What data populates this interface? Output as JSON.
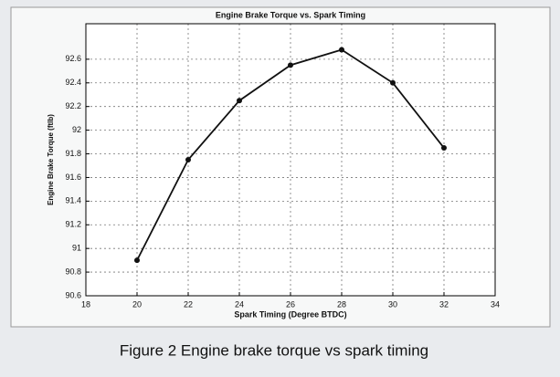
{
  "chart_data": {
    "type": "line",
    "title": "Engine Brake Torque vs. Spark Timing",
    "x_label": "Spark Timing (Degree BTDC)",
    "y_label": "Engine Brake Torque (ftlb)",
    "caption": "Figure 2 Engine brake torque vs spark timing",
    "x": [
      20,
      22,
      24,
      26,
      28,
      30,
      32
    ],
    "series": [
      {
        "color": "#111111",
        "values": [
          90.9,
          91.75,
          92.25,
          92.55,
          92.68,
          92.4,
          91.85
        ]
      }
    ],
    "xlim": [
      18,
      34
    ],
    "xticks": [
      18,
      20,
      22,
      24,
      26,
      28,
      30,
      32,
      34
    ],
    "ylim": [
      90.6,
      92.9
    ],
    "yticks": [
      90.6,
      90.8,
      91,
      91.2,
      91.4,
      91.6,
      91.8,
      92,
      92.2,
      92.4,
      92.6
    ],
    "grid": true
  }
}
